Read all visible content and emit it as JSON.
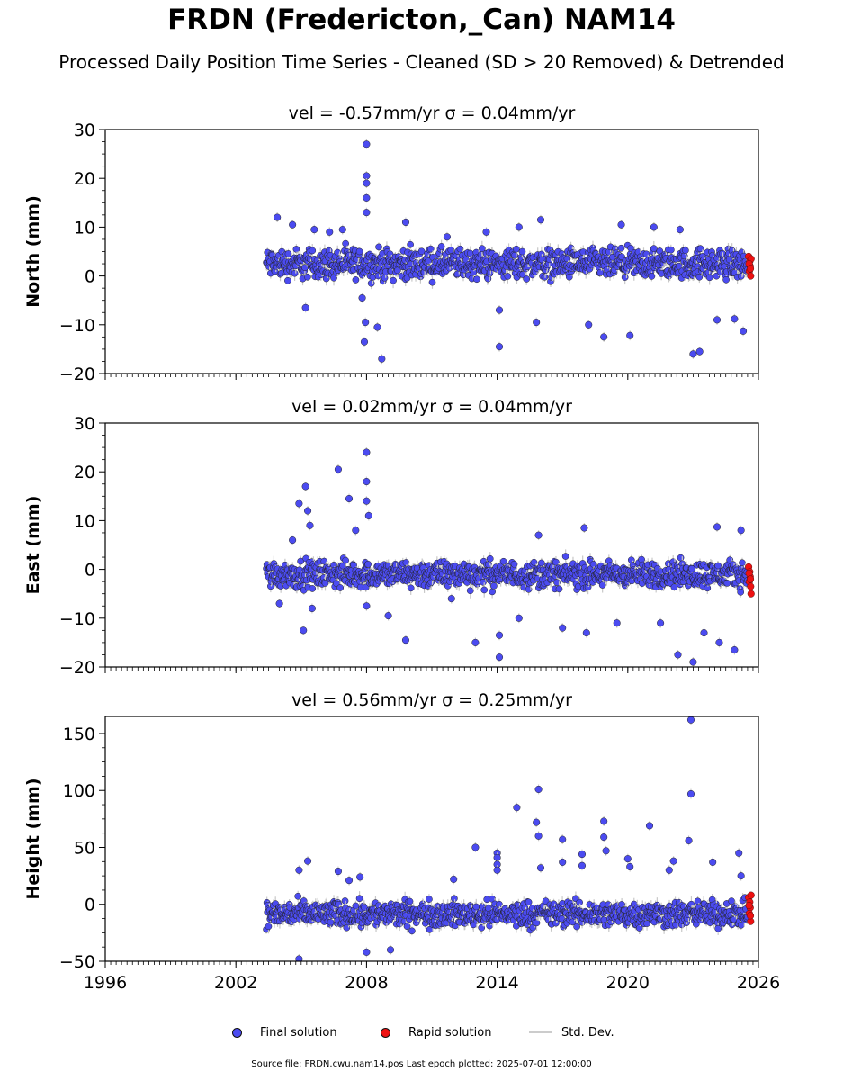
{
  "figure": {
    "title": "FRDN (Fredericton,_Can) NAM14",
    "subtitle": "Processed Daily Position Time Series - Cleaned (SD > 20 Removed) & Detrended",
    "source": "Source file: FRDN.cwu.nam14.pos  Last epoch plotted: 2025-07-01 12:00:00",
    "colors": {
      "final": "#4b4bf0",
      "rapid": "#ee1111",
      "std": "#c8c8c8"
    }
  },
  "legend": {
    "final": "Final solution",
    "rapid": "Rapid solution",
    "std": "Std. Dev."
  },
  "chart_data": [
    {
      "type": "scatter",
      "component": "north",
      "title": "vel = -0.57mm/yr   σ = 0.04mm/yr",
      "ylabel": "North (mm)",
      "xlim": [
        1996,
        2026
      ],
      "ylim": [
        -20,
        30
      ],
      "yticks": [
        -20,
        -10,
        0,
        10,
        20,
        30
      ],
      "xticks": [
        1996,
        2002,
        2008,
        2014,
        2020,
        2026
      ],
      "data_start": 2003.4,
      "data_end": 2025.5,
      "typical_range": [
        -2,
        7
      ],
      "outliers": [
        [
          2003.9,
          12
        ],
        [
          2004.6,
          10.5
        ],
        [
          2005.2,
          -6.5
        ],
        [
          2005.6,
          9.5
        ],
        [
          2006.3,
          9
        ],
        [
          2006.9,
          9.5
        ],
        [
          2007.8,
          -4.5
        ],
        [
          2007.95,
          -9.5
        ],
        [
          2008.0,
          27
        ],
        [
          2008.0,
          20.5
        ],
        [
          2008.0,
          19
        ],
        [
          2008.0,
          16
        ],
        [
          2008.0,
          13
        ],
        [
          2007.9,
          -13.5
        ],
        [
          2008.7,
          -17
        ],
        [
          2008.5,
          -10.5
        ],
        [
          2009.8,
          11
        ],
        [
          2011.7,
          8
        ],
        [
          2013.5,
          9
        ],
        [
          2014.1,
          -14.5
        ],
        [
          2014.1,
          -7
        ],
        [
          2015.0,
          10
        ],
        [
          2015.8,
          -9.5
        ],
        [
          2016.0,
          11.5
        ],
        [
          2018.2,
          -10
        ],
        [
          2018.9,
          -12.5
        ],
        [
          2019.7,
          10.5
        ],
        [
          2020.1,
          -12.2
        ],
        [
          2021.2,
          10
        ],
        [
          2022.4,
          9.5
        ],
        [
          2023.0,
          -16
        ],
        [
          2023.3,
          -15.5
        ],
        [
          2024.1,
          -9
        ],
        [
          2024.9,
          -8.8
        ],
        [
          2025.3,
          -11.3
        ]
      ],
      "rapid": [
        [
          2025.55,
          4
        ],
        [
          2025.6,
          3
        ],
        [
          2025.62,
          2
        ],
        [
          2025.58,
          1
        ],
        [
          2025.64,
          0
        ],
        [
          2025.66,
          3.5
        ],
        [
          2025.57,
          2.5
        ],
        [
          2025.63,
          1.5
        ]
      ]
    },
    {
      "type": "scatter",
      "component": "east",
      "title": "vel = 0.02mm/yr   σ = 0.04mm/yr",
      "ylabel": "East (mm)",
      "xlim": [
        1996,
        2026
      ],
      "ylim": [
        -20,
        30
      ],
      "yticks": [
        -20,
        -10,
        0,
        10,
        20,
        30
      ],
      "xticks": [
        1996,
        2002,
        2008,
        2014,
        2020,
        2026
      ],
      "data_start": 2003.4,
      "data_end": 2025.5,
      "typical_range": [
        -5,
        3
      ],
      "outliers": [
        [
          2004.0,
          -7
        ],
        [
          2004.6,
          6
        ],
        [
          2004.9,
          13.5
        ],
        [
          2005.2,
          17
        ],
        [
          2005.3,
          12
        ],
        [
          2005.4,
          9
        ],
        [
          2005.1,
          -12.5
        ],
        [
          2005.5,
          -8
        ],
        [
          2006.7,
          20.5
        ],
        [
          2007.2,
          14.5
        ],
        [
          2007.5,
          8
        ],
        [
          2008.0,
          24
        ],
        [
          2008.0,
          18
        ],
        [
          2008.0,
          14
        ],
        [
          2008.1,
          11
        ],
        [
          2008.0,
          -7.5
        ],
        [
          2009.0,
          -9.5
        ],
        [
          2009.8,
          -14.5
        ],
        [
          2011.9,
          -6
        ],
        [
          2013.0,
          -15
        ],
        [
          2014.1,
          -13.5
        ],
        [
          2014.1,
          -18
        ],
        [
          2015.0,
          -10
        ],
        [
          2015.9,
          7
        ],
        [
          2017.0,
          -12
        ],
        [
          2018.0,
          8.5
        ],
        [
          2018.1,
          -13
        ],
        [
          2019.5,
          -11
        ],
        [
          2021.5,
          -11
        ],
        [
          2022.3,
          -17.5
        ],
        [
          2023.0,
          -19
        ],
        [
          2023.5,
          -13
        ],
        [
          2024.1,
          8.7
        ],
        [
          2024.2,
          -15
        ],
        [
          2024.9,
          -16.5
        ],
        [
          2025.2,
          8
        ]
      ],
      "rapid": [
        [
          2025.55,
          0.5
        ],
        [
          2025.6,
          -0.5
        ],
        [
          2025.62,
          -1.5
        ],
        [
          2025.58,
          -2.5
        ],
        [
          2025.64,
          -3.5
        ],
        [
          2025.66,
          -5
        ],
        [
          2025.57,
          -0.8
        ],
        [
          2025.63,
          -2
        ]
      ]
    },
    {
      "type": "scatter",
      "component": "height",
      "title": "vel = 0.56mm/yr   σ = 0.25mm/yr",
      "ylabel": "Height (mm)",
      "xlim": [
        1996,
        2026
      ],
      "ylim": [
        -50,
        165
      ],
      "yticks": [
        -50,
        0,
        50,
        100,
        150
      ],
      "xticks": [
        1996,
        2002,
        2008,
        2014,
        2020,
        2026
      ],
      "data_start": 2003.4,
      "data_end": 2025.5,
      "typical_range": [
        -25,
        8
      ],
      "outliers": [
        [
          2004.9,
          30
        ],
        [
          2005.3,
          38
        ],
        [
          2004.9,
          -48
        ],
        [
          2006.7,
          29
        ],
        [
          2007.2,
          21
        ],
        [
          2007.7,
          24
        ],
        [
          2008.0,
          -42
        ],
        [
          2009.1,
          -40
        ],
        [
          2012.0,
          22
        ],
        [
          2013.0,
          50
        ],
        [
          2014.0,
          45
        ],
        [
          2014.0,
          41
        ],
        [
          2014.0,
          35
        ],
        [
          2014.0,
          30
        ],
        [
          2014.9,
          85
        ],
        [
          2015.9,
          101
        ],
        [
          2015.8,
          72
        ],
        [
          2015.9,
          60
        ],
        [
          2016.0,
          32
        ],
        [
          2017.0,
          57
        ],
        [
          2017.0,
          37
        ],
        [
          2017.9,
          44
        ],
        [
          2017.9,
          34
        ],
        [
          2018.9,
          73
        ],
        [
          2018.9,
          59
        ],
        [
          2019.0,
          47
        ],
        [
          2020.0,
          40
        ],
        [
          2020.1,
          33
        ],
        [
          2021.0,
          69
        ],
        [
          2021.9,
          30
        ],
        [
          2022.1,
          38
        ],
        [
          2022.9,
          162
        ],
        [
          2022.9,
          97
        ],
        [
          2022.8,
          56
        ],
        [
          2023.9,
          37
        ],
        [
          2025.1,
          45
        ],
        [
          2025.2,
          25
        ]
      ],
      "rapid": [
        [
          2025.55,
          6
        ],
        [
          2025.6,
          2
        ],
        [
          2025.62,
          -3
        ],
        [
          2025.58,
          -8
        ],
        [
          2025.64,
          -15
        ],
        [
          2025.66,
          8
        ],
        [
          2025.57,
          -1
        ],
        [
          2025.63,
          -10
        ]
      ]
    }
  ]
}
